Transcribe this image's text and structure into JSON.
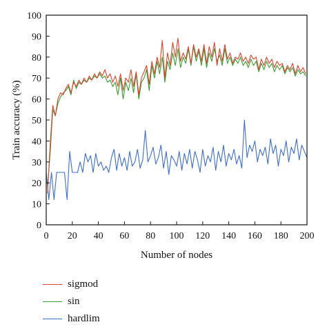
{
  "chart_data": {
    "type": "line",
    "title": "",
    "xlabel": "Number of nodes",
    "ylabel": "Train accuracy (%)",
    "xlim": [
      0,
      200
    ],
    "ylim": [
      0,
      100
    ],
    "x_ticks": [
      "0",
      "20",
      "40",
      "60",
      "80",
      "100",
      "120",
      "140",
      "160",
      "180",
      "200"
    ],
    "y_ticks": [
      "0",
      "10",
      "20",
      "30",
      "40",
      "50",
      "60",
      "70",
      "80",
      "90",
      "100"
    ],
    "grid": false,
    "legend_position": "bottom-left",
    "series": [
      {
        "name": "sigmod",
        "color": "#d8432c",
        "x": [
          1,
          3,
          5,
          7,
          9,
          11,
          13,
          15,
          17,
          19,
          21,
          23,
          25,
          27,
          29,
          31,
          33,
          35,
          37,
          39,
          41,
          43,
          45,
          47,
          49,
          51,
          53,
          55,
          57,
          59,
          61,
          63,
          65,
          67,
          69,
          71,
          73,
          75,
          77,
          79,
          81,
          83,
          85,
          87,
          89,
          91,
          93,
          95,
          97,
          99,
          101,
          103,
          105,
          107,
          109,
          111,
          113,
          115,
          117,
          119,
          121,
          123,
          125,
          127,
          129,
          131,
          133,
          135,
          137,
          139,
          141,
          143,
          145,
          147,
          149,
          151,
          153,
          155,
          157,
          159,
          161,
          163,
          165,
          167,
          169,
          171,
          173,
          175,
          177,
          179,
          181,
          183,
          185,
          187,
          189,
          191,
          193,
          195,
          197,
          199
        ],
        "values": [
          15,
          38,
          57,
          52,
          60,
          63,
          62,
          65,
          67,
          63,
          68,
          66,
          69,
          67,
          70,
          68,
          71,
          69,
          72,
          70,
          73,
          71,
          74,
          70,
          72,
          68,
          71,
          66,
          72,
          64,
          70,
          68,
          74,
          66,
          73,
          62,
          70,
          73,
          76,
          67,
          78,
          72,
          80,
          75,
          88,
          70,
          82,
          76,
          87,
          80,
          89,
          78,
          82,
          79,
          85,
          77,
          86,
          80,
          84,
          78,
          86,
          77,
          85,
          80,
          87,
          76,
          84,
          78,
          86,
          79,
          82,
          77,
          80,
          79,
          82,
          78,
          80,
          77,
          81,
          79,
          80,
          74,
          79,
          76,
          80,
          77,
          79,
          75,
          78,
          76,
          77,
          73,
          76,
          74,
          77,
          72,
          76,
          73,
          75,
          72
        ]
      },
      {
        "name": "sin",
        "color": "#3a9a32",
        "x": [
          1,
          3,
          5,
          7,
          9,
          11,
          13,
          15,
          17,
          19,
          21,
          23,
          25,
          27,
          29,
          31,
          33,
          35,
          37,
          39,
          41,
          43,
          45,
          47,
          49,
          51,
          53,
          55,
          57,
          59,
          61,
          63,
          65,
          67,
          69,
          71,
          73,
          75,
          77,
          79,
          81,
          83,
          85,
          87,
          89,
          91,
          93,
          95,
          97,
          99,
          101,
          103,
          105,
          107,
          109,
          111,
          113,
          115,
          117,
          119,
          121,
          123,
          125,
          127,
          129,
          131,
          133,
          135,
          137,
          139,
          141,
          143,
          145,
          147,
          149,
          151,
          153,
          155,
          157,
          159,
          161,
          163,
          165,
          167,
          169,
          171,
          173,
          175,
          177,
          179,
          181,
          183,
          185,
          187,
          189,
          191,
          193,
          195,
          197,
          199
        ],
        "values": [
          18,
          34,
          55,
          52,
          58,
          61,
          63,
          64,
          66,
          62,
          69,
          65,
          68,
          67,
          69,
          68,
          70,
          69,
          71,
          70,
          72,
          70,
          71,
          68,
          69,
          66,
          68,
          62,
          70,
          60,
          68,
          64,
          70,
          63,
          72,
          60,
          68,
          70,
          74,
          64,
          76,
          70,
          78,
          72,
          80,
          68,
          78,
          74,
          82,
          76,
          84,
          75,
          80,
          77,
          84,
          76,
          85,
          78,
          83,
          76,
          84,
          75,
          82,
          78,
          84,
          78,
          81,
          76,
          84,
          77,
          80,
          76,
          79,
          77,
          80,
          76,
          78,
          75,
          79,
          76,
          78,
          73,
          77,
          74,
          78,
          75,
          77,
          73,
          76,
          74,
          76,
          72,
          75,
          73,
          75,
          71,
          74,
          72,
          73,
          71
        ]
      },
      {
        "name": "hardlim",
        "color": "#3d6cc6",
        "x": [
          0,
          2,
          4,
          6,
          8,
          10,
          12,
          14,
          16,
          18,
          20,
          22,
          24,
          26,
          28,
          30,
          32,
          34,
          36,
          38,
          40,
          42,
          44,
          46,
          48,
          50,
          52,
          54,
          56,
          58,
          60,
          62,
          64,
          66,
          68,
          70,
          72,
          74,
          76,
          78,
          80,
          82,
          84,
          86,
          88,
          90,
          92,
          94,
          96,
          98,
          100,
          102,
          104,
          106,
          108,
          110,
          112,
          114,
          116,
          118,
          120,
          122,
          124,
          126,
          128,
          130,
          132,
          134,
          136,
          138,
          140,
          142,
          144,
          146,
          148,
          150,
          152,
          154,
          156,
          158,
          160,
          162,
          164,
          166,
          168,
          170,
          172,
          174,
          176,
          178,
          180,
          182,
          184,
          186,
          188,
          190,
          192,
          194,
          196,
          198,
          200
        ],
        "values": [
          25,
          12,
          25,
          12,
          25,
          25,
          25,
          25,
          12,
          35,
          25,
          25,
          25,
          30,
          25,
          34,
          30,
          33,
          25,
          34,
          28,
          30,
          26,
          28,
          25,
          32,
          36,
          26,
          34,
          28,
          32,
          26,
          35,
          28,
          30,
          36,
          27,
          31,
          45,
          30,
          33,
          37,
          29,
          32,
          38,
          27,
          35,
          24,
          33,
          31,
          28,
          35,
          26,
          34,
          29,
          36,
          27,
          35,
          31,
          25,
          36,
          28,
          33,
          30,
          37,
          26,
          35,
          30,
          38,
          28,
          34,
          31,
          36,
          29,
          33,
          27,
          50,
          32,
          38,
          35,
          40,
          30,
          36,
          33,
          37,
          29,
          41,
          34,
          38,
          28,
          36,
          33,
          40,
          30,
          37,
          34,
          41,
          31,
          38,
          35,
          32
        ]
      }
    ]
  }
}
